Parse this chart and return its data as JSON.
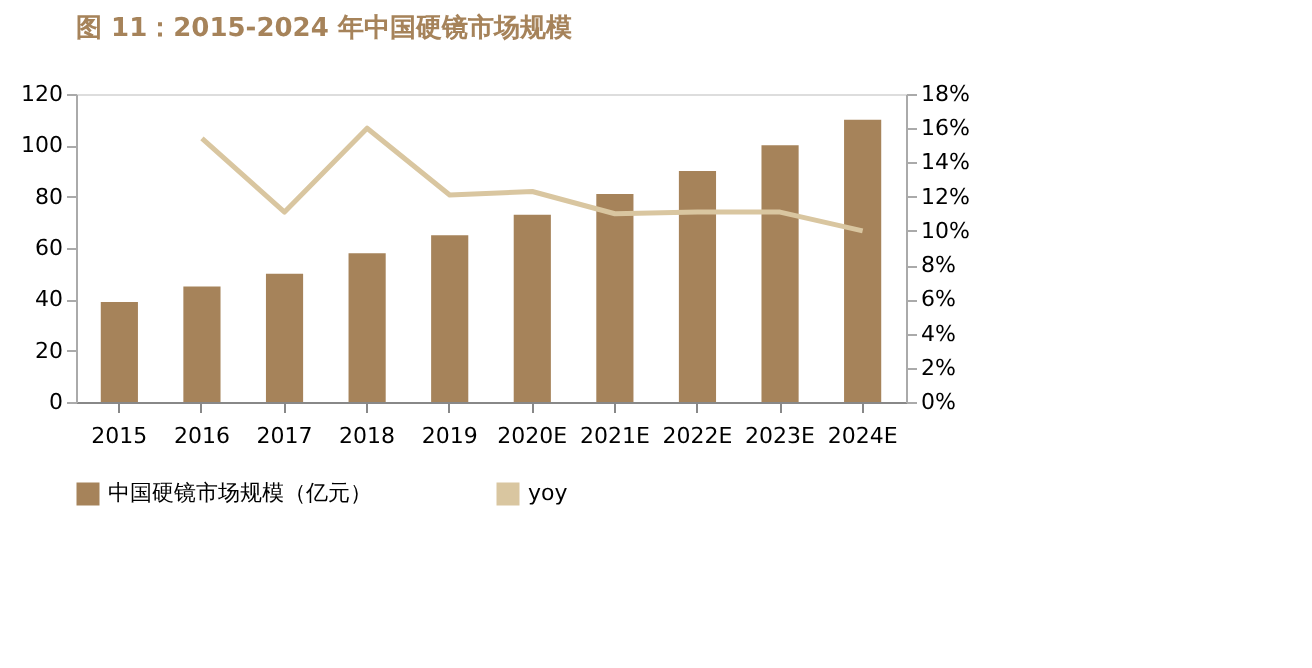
{
  "chart_data": {
    "type": "bar",
    "title": "图 11：2015-2024 年中国硬镜市场规模",
    "categories": [
      "2015",
      "2016",
      "2017",
      "2018",
      "2019",
      "2020E",
      "2021E",
      "2022E",
      "2023E",
      "2024E"
    ],
    "series": [
      {
        "name": "中国硬镜市场规模（亿元）",
        "color": "#a6835a",
        "values": [
          39,
          45,
          50,
          58,
          65,
          73,
          81,
          90,
          100,
          110
        ]
      },
      {
        "name": "yoy",
        "type": "line",
        "axis": "y2",
        "color": "#d9c6a0",
        "values": [
          null,
          15.4,
          11.1,
          16.0,
          12.1,
          12.3,
          11.0,
          11.1,
          11.1,
          10.0
        ]
      }
    ],
    "ylim": [
      0,
      120
    ],
    "yticks": [
      0,
      20,
      40,
      60,
      80,
      100,
      120
    ],
    "y2lim": [
      0,
      18
    ],
    "y2ticks": [
      {
        "value": 0,
        "label": "0%"
      },
      {
        "value": 2,
        "label": "2%"
      },
      {
        "value": 4,
        "label": "4%"
      },
      {
        "value": 6,
        "label": "6%"
      },
      {
        "value": 8,
        "label": "8%"
      },
      {
        "value": 10,
        "label": "10%"
      },
      {
        "value": 12,
        "label": "12%"
      },
      {
        "value": 14,
        "label": "14%"
      },
      {
        "value": 16,
        "label": "16%"
      },
      {
        "value": 18,
        "label": "18%"
      }
    ],
    "grid": false,
    "legend": "bottom",
    "marker": "none",
    "line_style": "solid"
  }
}
